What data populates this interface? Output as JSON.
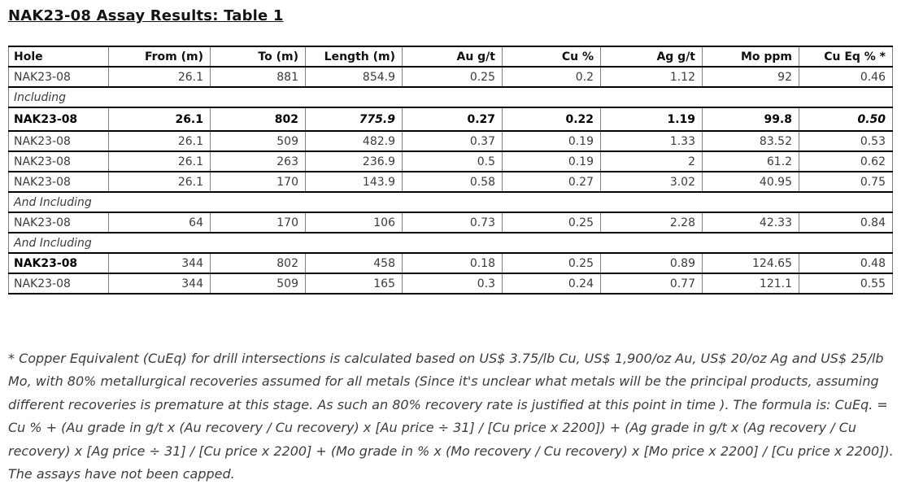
{
  "title": "NAK23-08 Assay Results: Table 1",
  "table": {
    "columns": [
      "Hole",
      "From (m)",
      "To (m)",
      "Length (m)",
      "Au g/t",
      "Cu %",
      "Ag g/t",
      "Mo ppm",
      "Cu Eq % *"
    ],
    "rows": [
      {
        "type": "data",
        "style": "normal",
        "cells": [
          "NAK23-08",
          "26.1",
          "881",
          "854.9",
          "0.25",
          "0.2",
          "1.12",
          "92",
          "0.46"
        ]
      },
      {
        "type": "section",
        "label": "Including"
      },
      {
        "type": "data",
        "style": "bold",
        "italic_cells": [
          3,
          8
        ],
        "cells": [
          "NAK23-08",
          "26.1",
          "802",
          "775.9",
          "0.27",
          "0.22",
          "1.19",
          "99.8",
          "0.50"
        ]
      },
      {
        "type": "data",
        "style": "normal",
        "cells": [
          "NAK23-08",
          "26.1",
          "509",
          "482.9",
          "0.37",
          "0.19",
          "1.33",
          "83.52",
          "0.53"
        ]
      },
      {
        "type": "data",
        "style": "normal",
        "cells": [
          "NAK23-08",
          "26.1",
          "263",
          "236.9",
          "0.5",
          "0.19",
          "2",
          "61.2",
          "0.62"
        ]
      },
      {
        "type": "data",
        "style": "normal",
        "cells": [
          "NAK23-08",
          "26.1",
          "170",
          "143.9",
          "0.58",
          "0.27",
          "3.02",
          "40.95",
          "0.75"
        ]
      },
      {
        "type": "section",
        "label": "And Including"
      },
      {
        "type": "data",
        "style": "normal",
        "cells": [
          "NAK23-08",
          "64",
          "170",
          "106",
          "0.73",
          "0.25",
          "2.28",
          "42.33",
          "0.84"
        ]
      },
      {
        "type": "section",
        "label": "And Including"
      },
      {
        "type": "data",
        "style": "bold-hole",
        "cells": [
          "NAK23-08",
          "344",
          "802",
          "458",
          "0.18",
          "0.25",
          "0.89",
          "124.65",
          "0.48"
        ]
      },
      {
        "type": "data",
        "style": "normal",
        "cells": [
          "NAK23-08",
          "344",
          "509",
          "165",
          "0.3",
          "0.24",
          "0.77",
          "121.1",
          "0.55"
        ]
      }
    ]
  },
  "footnote": "* Copper Equivalent (CuEq) for drill intersections is calculated based on US$ 3.75/lb Cu, US$ 1,900/oz Au, US$ 20/oz Ag and US$ 25/lb Mo, with 80% metallurgical recoveries assumed for all metals (Since it's unclear what metals will be the principal products, assuming different recoveries is premature at this stage. As such an 80% recovery rate is justified at this point in time ). The formula is: CuEq. = Cu % + (Au grade in g/t x (Au recovery / Cu recovery) x [Au price ÷ 31] / [Cu price x 2200]) + (Ag grade in g/t x (Ag recovery / Cu recovery) x [Ag price ÷ 31] / [Cu price x 2200] + (Mo grade in % x (Mo recovery / Cu recovery) x [Mo price x 2200] / [Cu price x 2200]). The assays have not been capped."
}
